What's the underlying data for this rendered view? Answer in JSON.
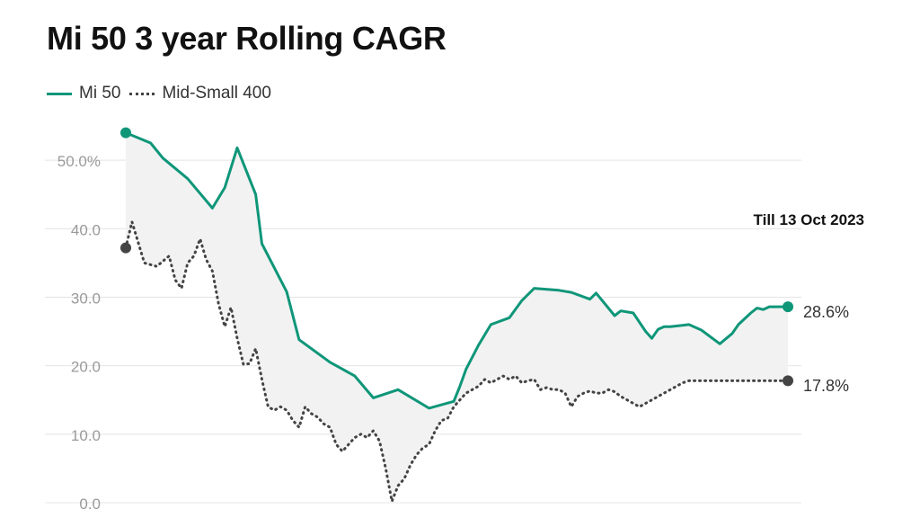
{
  "title": "Mi 50 3 year Rolling CAGR",
  "legend": [
    {
      "label": "Mi 50",
      "style": "solid",
      "color": "#0f9679"
    },
    {
      "label": "Mid-Small 400",
      "style": "dotted",
      "color": "#444444"
    }
  ],
  "annotation": "Till 13 Oct 2023",
  "chart_data": {
    "type": "line",
    "title": "Mi 50 3 year Rolling CAGR",
    "xlabel": "",
    "ylabel": "",
    "ylim": [
      0,
      55
    ],
    "y_ticks": [
      0,
      10,
      20,
      30,
      40,
      50
    ],
    "y_tick_labels": [
      "0.0",
      "10.0",
      "20.0",
      "30.0",
      "40.0",
      "50.0%"
    ],
    "grid": true,
    "legend_position": "top-left",
    "fill_between": true,
    "end_labels": [
      "28.6%",
      "17.8%"
    ],
    "series": [
      {
        "name": "Mi 50",
        "style": "solid",
        "color": "#0f9679",
        "x": [
          0,
          4,
          6,
          10,
          14,
          16,
          18,
          21,
          22,
          26,
          28,
          33,
          37,
          40,
          44,
          49,
          53,
          54,
          55,
          57,
          59,
          62,
          64,
          66,
          70,
          72,
          75,
          76,
          79,
          80,
          82,
          84,
          85,
          86,
          87,
          88,
          91,
          93,
          96,
          98,
          99,
          101,
          102,
          103,
          104,
          106,
          107
        ],
        "y": [
          54.0,
          52.5,
          50.3,
          47.3,
          43.0,
          46.0,
          51.8,
          45.0,
          37.8,
          30.8,
          23.8,
          20.5,
          18.5,
          15.3,
          16.5,
          13.8,
          14.8,
          17.0,
          19.5,
          23.0,
          26.0,
          27.0,
          29.5,
          31.3,
          31.0,
          30.7,
          29.7,
          30.6,
          27.3,
          28.0,
          27.7,
          25.0,
          24.0,
          25.3,
          25.7,
          25.7,
          26.0,
          25.2,
          23.2,
          24.7,
          26.0,
          27.7,
          28.4,
          28.2,
          28.6,
          28.6,
          28.6
        ],
        "end_value": 28.6
      },
      {
        "name": "Mid-Small 400",
        "style": "dotted",
        "color": "#444444",
        "x": [
          0,
          1,
          3,
          5,
          7,
          8,
          9,
          10,
          11,
          12,
          13,
          14,
          15,
          16,
          17,
          18,
          19,
          20,
          21,
          22,
          23,
          24,
          25,
          26,
          27,
          28,
          29,
          30,
          31,
          32,
          33,
          34,
          35,
          36,
          37,
          38,
          39,
          40,
          41,
          42,
          43,
          44,
          45,
          46,
          47,
          48,
          49,
          50,
          51,
          52,
          53,
          54,
          55,
          56,
          57,
          58,
          59,
          60,
          61,
          62,
          63,
          64,
          65,
          66,
          67,
          68,
          69,
          70,
          71,
          72,
          73,
          74,
          75,
          76,
          77,
          78,
          79,
          80,
          81,
          82,
          83,
          84,
          85,
          86,
          87,
          88,
          89,
          90,
          91,
          92,
          93,
          94,
          95,
          96,
          97,
          98,
          99,
          100,
          101,
          102,
          103,
          104,
          105,
          106,
          107
        ],
        "y": [
          37.2,
          41.0,
          35.0,
          34.5,
          36.0,
          32.5,
          31.3,
          35.0,
          36.0,
          38.5,
          35.5,
          33.8,
          29.0,
          25.7,
          28.5,
          24.0,
          20.2,
          20.3,
          22.5,
          18.0,
          14.0,
          13.5,
          14.0,
          13.5,
          12.0,
          11.0,
          14.0,
          13.0,
          12.5,
          11.5,
          11.0,
          8.5,
          7.5,
          8.5,
          9.5,
          10.0,
          9.5,
          10.5,
          9.0,
          5.0,
          0.2,
          2.5,
          3.5,
          5.5,
          7.0,
          8.0,
          8.5,
          10.5,
          12.0,
          12.3,
          14.0,
          15.0,
          16.0,
          16.5,
          17.0,
          18.0,
          17.5,
          18.0,
          18.5,
          18.0,
          18.5,
          17.5,
          17.8,
          18.0,
          16.5,
          16.8,
          16.5,
          16.5,
          16.0,
          14.0,
          15.5,
          16.0,
          16.3,
          16.0,
          16.0,
          16.5,
          16.2,
          15.5,
          15.0,
          14.5,
          14.0,
          14.5,
          15.0,
          15.5,
          16.0,
          16.5,
          17.0,
          17.5,
          17.8,
          17.8,
          17.8,
          17.8,
          17.8,
          17.8,
          17.8,
          17.8,
          17.8,
          17.8,
          17.8,
          17.8,
          17.8,
          17.8,
          17.8,
          17.8,
          17.8
        ],
        "end_value": 17.8
      }
    ]
  }
}
